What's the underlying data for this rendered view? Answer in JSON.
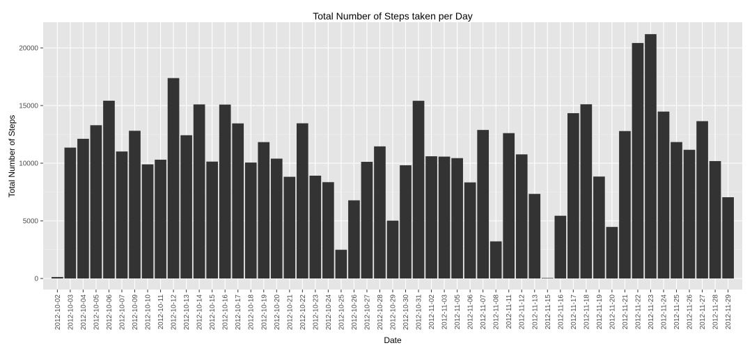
{
  "chart_data": {
    "type": "bar",
    "title": "Total Number of Steps taken per Day",
    "xlabel": "Date",
    "ylabel": "Total Number of Steps",
    "ylim": [
      0,
      22000
    ],
    "yticks": [
      0,
      5000,
      10000,
      15000,
      20000
    ],
    "grid": true,
    "legend": "none",
    "colors": {
      "panel": "#E5E5E5",
      "grid_major": "#FFFFFF",
      "grid_minor": "#F2F2F2",
      "bar": "#333333",
      "tick_text": "#4D4D4D"
    },
    "categories": [
      "2012-10-02",
      "2012-10-03",
      "2012-10-04",
      "2012-10-05",
      "2012-10-06",
      "2012-10-07",
      "2012-10-09",
      "2012-10-10",
      "2012-10-11",
      "2012-10-12",
      "2012-10-13",
      "2012-10-14",
      "2012-10-15",
      "2012-10-16",
      "2012-10-17",
      "2012-10-18",
      "2012-10-19",
      "2012-10-20",
      "2012-10-21",
      "2012-10-22",
      "2012-10-23",
      "2012-10-24",
      "2012-10-25",
      "2012-10-26",
      "2012-10-27",
      "2012-10-28",
      "2012-10-29",
      "2012-10-30",
      "2012-10-31",
      "2012-11-02",
      "2012-11-03",
      "2012-11-05",
      "2012-11-06",
      "2012-11-07",
      "2012-11-08",
      "2012-11-11",
      "2012-11-12",
      "2012-11-13",
      "2012-11-15",
      "2012-11-16",
      "2012-11-17",
      "2012-11-18",
      "2012-11-19",
      "2012-11-20",
      "2012-11-21",
      "2012-11-22",
      "2012-11-23",
      "2012-11-24",
      "2012-11-25",
      "2012-11-26",
      "2012-11-27",
      "2012-11-28",
      "2012-11-29"
    ],
    "values": [
      126,
      11352,
      12116,
      13294,
      15420,
      11015,
      12811,
      9900,
      10304,
      17382,
      12426,
      15098,
      10139,
      15084,
      13452,
      10056,
      11829,
      10395,
      8821,
      13460,
      8918,
      8355,
      2492,
      6778,
      10119,
      11458,
      5018,
      9819,
      15414,
      10600,
      10571,
      10439,
      8334,
      12883,
      3219,
      12608,
      10765,
      7336,
      41,
      5441,
      14339,
      15110,
      8841,
      4472,
      12787,
      20427,
      21194,
      14478,
      11834,
      11162,
      13646,
      10183,
      7047
    ]
  }
}
